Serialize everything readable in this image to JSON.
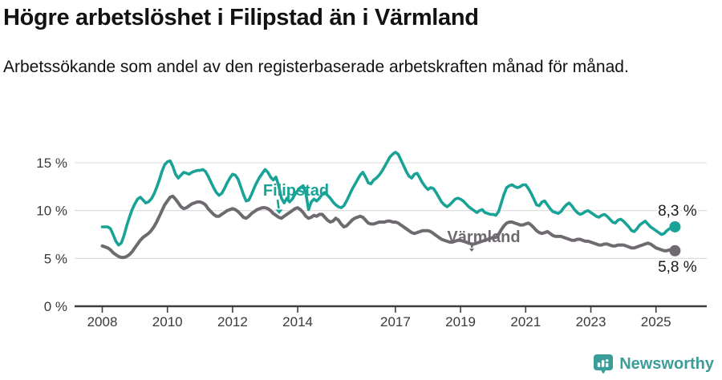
{
  "title": "Högre arbetslöshet i Filipstad än i Värmland",
  "subtitle": "Arbetssökande som andel av den registerbaserade arbetskraften månad för månad.",
  "branding": {
    "name": "Newsworthy",
    "color": "#3b9d97"
  },
  "chart_data": {
    "type": "line",
    "title": "Högre arbetslöshet i Filipstad än i Värmland",
    "unit": "%",
    "x_start": {
      "year": 2008,
      "month": 1
    },
    "x_end": {
      "year": 2025,
      "month": 8
    },
    "x_tick_years": [
      2008,
      2010,
      2012,
      2014,
      2017,
      2019,
      2021,
      2023,
      2025
    ],
    "x_tick_labels": [
      "2008",
      "2010",
      "2012",
      "2014",
      "2017",
      "2019",
      "2021",
      "2023",
      "2025"
    ],
    "y_ticks": [
      0,
      5,
      10,
      15
    ],
    "y_tick_labels": [
      "0 %",
      "5 %",
      "10 %",
      "15 %"
    ],
    "ylim": [
      0,
      16.5
    ],
    "grid": "horizontal",
    "legend_position": "inline-labels",
    "axis_color": "#3d3d3d",
    "grid_color": "#d8d8d8",
    "text_color": "#3a3a3a",
    "series": [
      {
        "name": "Filipstad",
        "color": "#18a396",
        "end_label": "8,3 %",
        "end_value": 8.3,
        "values": [
          8.3,
          8.3,
          8.3,
          8.1,
          7.5,
          6.8,
          6.4,
          6.6,
          7.4,
          8.4,
          9.3,
          10.1,
          10.7,
          11.2,
          11.4,
          11.1,
          10.8,
          10.9,
          11.2,
          11.7,
          12.4,
          13.2,
          14.1,
          14.8,
          15.1,
          15.2,
          14.6,
          13.8,
          13.4,
          13.7,
          14.0,
          13.9,
          13.8,
          14.0,
          14.1,
          14.2,
          14.2,
          14.3,
          14.1,
          13.6,
          13.0,
          12.4,
          11.9,
          11.6,
          11.8,
          12.3,
          12.9,
          13.4,
          13.8,
          13.7,
          13.3,
          12.5,
          11.7,
          11.0,
          11.1,
          11.7,
          12.4,
          13.0,
          13.5,
          13.9,
          14.3,
          14.0,
          13.5,
          13.2,
          13.5,
          12.6,
          11.3,
          10.8,
          11.3,
          10.9,
          11.2,
          11.7,
          12.1,
          12.4,
          12.6,
          11.8,
          10.1,
          10.9,
          11.2,
          11.0,
          11.3,
          11.7,
          11.9,
          11.6,
          11.3,
          10.9,
          10.6,
          10.4,
          10.3,
          10.5,
          11.0,
          11.6,
          12.2,
          12.7,
          13.2,
          13.7,
          14.0,
          13.5,
          12.9,
          12.8,
          13.2,
          13.4,
          13.7,
          14.1,
          14.6,
          15.1,
          15.6,
          15.9,
          16.1,
          15.9,
          15.3,
          14.7,
          14.1,
          13.6,
          13.4,
          13.8,
          13.9,
          13.4,
          12.9,
          12.5,
          12.2,
          12.4,
          12.3,
          11.9,
          11.4,
          10.9,
          10.6,
          10.4,
          10.6,
          10.9,
          11.2,
          11.3,
          11.2,
          11.0,
          10.7,
          10.4,
          10.2,
          10.0,
          9.8,
          10.0,
          10.1,
          9.8,
          9.7,
          9.6,
          9.6,
          9.5,
          9.9,
          10.8,
          11.7,
          12.4,
          12.6,
          12.7,
          12.5,
          12.4,
          12.5,
          12.7,
          12.7,
          12.3,
          11.8,
          11.2,
          10.6,
          10.5,
          10.9,
          11.0,
          10.6,
          10.2,
          9.9,
          9.8,
          9.7,
          9.9,
          10.3,
          10.6,
          10.8,
          10.5,
          10.1,
          9.8,
          9.6,
          9.7,
          9.9,
          10.0,
          9.8,
          9.6,
          9.4,
          9.3,
          9.5,
          9.6,
          9.4,
          9.1,
          8.8,
          8.7,
          9.0,
          9.1,
          8.9,
          8.6,
          8.3,
          7.9,
          7.8,
          8.1,
          8.5,
          8.7,
          8.9,
          8.6,
          8.3,
          8.1,
          7.9,
          7.7,
          7.5,
          7.6,
          7.9,
          8.1,
          8.2,
          8.3
        ]
      },
      {
        "name": "Värmland",
        "color": "#6e6a70",
        "end_label": "5,8 %",
        "end_value": 5.8,
        "values": [
          6.3,
          6.2,
          6.1,
          5.9,
          5.6,
          5.4,
          5.2,
          5.1,
          5.1,
          5.2,
          5.4,
          5.7,
          6.1,
          6.5,
          6.9,
          7.2,
          7.4,
          7.6,
          7.9,
          8.3,
          8.8,
          9.4,
          10.0,
          10.6,
          11.0,
          11.4,
          11.5,
          11.2,
          10.8,
          10.4,
          10.2,
          10.3,
          10.5,
          10.7,
          10.8,
          10.9,
          10.9,
          10.8,
          10.6,
          10.2,
          9.9,
          9.6,
          9.4,
          9.4,
          9.6,
          9.8,
          10.0,
          10.1,
          10.2,
          10.1,
          9.9,
          9.6,
          9.3,
          9.2,
          9.4,
          9.7,
          9.9,
          10.1,
          10.2,
          10.3,
          10.3,
          10.2,
          10.0,
          9.7,
          9.5,
          9.3,
          9.2,
          9.4,
          9.6,
          9.8,
          10.0,
          10.2,
          10.3,
          10.1,
          9.8,
          9.4,
          9.2,
          9.3,
          9.5,
          9.4,
          9.6,
          9.6,
          9.3,
          9.0,
          8.8,
          8.9,
          9.2,
          9.0,
          8.6,
          8.3,
          8.4,
          8.7,
          9.0,
          9.2,
          9.3,
          9.4,
          9.3,
          9.0,
          8.7,
          8.6,
          8.6,
          8.7,
          8.8,
          8.8,
          8.8,
          8.9,
          8.9,
          8.8,
          8.8,
          8.7,
          8.5,
          8.3,
          8.1,
          7.9,
          7.7,
          7.6,
          7.7,
          7.8,
          7.9,
          7.9,
          7.9,
          7.8,
          7.6,
          7.4,
          7.2,
          7.0,
          6.9,
          6.8,
          6.7,
          6.7,
          6.8,
          6.9,
          6.9,
          6.8,
          6.7,
          6.6,
          6.5,
          6.5,
          6.6,
          6.7,
          6.8,
          6.9,
          7.0,
          7.1,
          7.2,
          7.2,
          7.5,
          8.0,
          8.4,
          8.7,
          8.8,
          8.8,
          8.7,
          8.6,
          8.5,
          8.5,
          8.6,
          8.7,
          8.5,
          8.2,
          7.9,
          7.7,
          7.6,
          7.7,
          7.8,
          7.6,
          7.4,
          7.3,
          7.3,
          7.3,
          7.2,
          7.1,
          7.0,
          6.9,
          6.9,
          7.0,
          7.0,
          6.9,
          6.8,
          6.8,
          6.7,
          6.6,
          6.5,
          6.4,
          6.4,
          6.5,
          6.5,
          6.4,
          6.3,
          6.3,
          6.4,
          6.4,
          6.4,
          6.3,
          6.2,
          6.1,
          6.1,
          6.2,
          6.3,
          6.4,
          6.5,
          6.6,
          6.5,
          6.3,
          6.1,
          6.0,
          5.9,
          5.8,
          5.8,
          5.9,
          5.9,
          5.8
        ]
      }
    ]
  }
}
